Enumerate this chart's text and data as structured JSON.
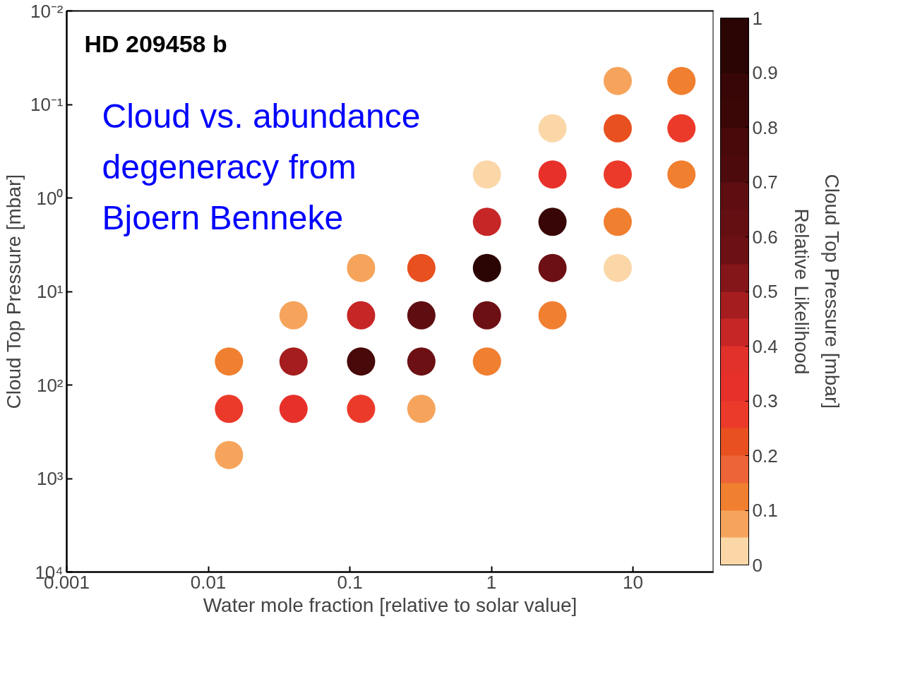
{
  "chart_data": {
    "type": "scatter",
    "xlabel": "Water mole fraction [relative to solar value]",
    "ylabel": "Cloud Top Pressure [mbar]",
    "clabel": "Relative Likelihood\nCloud Top Pressure [mbar]",
    "annotations": [
      "HD 209458 b",
      "Cloud vs. abundance degeneracy from Bjoern Benneke"
    ],
    "log": "xy",
    "marker": "circle",
    "grid": false,
    "xlim": [
      0.001,
      37
    ],
    "ylim": [
      10000,
      0.01
    ],
    "xticks": [
      0.001,
      0.01,
      0.1,
      1,
      10
    ],
    "yticks": [
      {
        "value": 0.01,
        "label": "10⁻²"
      },
      {
        "value": 0.1,
        "label": "10⁻¹"
      },
      {
        "value": 1,
        "label": "10⁰"
      },
      {
        "value": 10,
        "label": "10¹"
      },
      {
        "value": 100,
        "label": "10²"
      },
      {
        "value": 1000,
        "label": "10³"
      },
      {
        "value": 10000,
        "label": "10⁴"
      }
    ],
    "x": [
      0.014,
      0.014,
      0.014,
      0.04,
      0.04,
      0.04,
      0.12,
      0.12,
      0.12,
      0.12,
      0.32,
      0.32,
      0.32,
      0.32,
      0.93,
      0.93,
      0.93,
      0.93,
      0.93,
      2.7,
      2.7,
      2.7,
      2.7,
      2.7,
      7.8,
      7.8,
      7.8,
      7.8,
      7.8,
      22,
      22,
      22
    ],
    "values": [
      180,
      56,
      560,
      56,
      180,
      18,
      56,
      180,
      18,
      5.6,
      18,
      56,
      5.6,
      180,
      5.6,
      18,
      1.8,
      56,
      0.56,
      1.8,
      5.6,
      0.56,
      18,
      0.18,
      0.56,
      0.18,
      1.8,
      0.056,
      5.6,
      0.18,
      0.056,
      0.56
    ],
    "cvalues": [
      0.3,
      0.1,
      0.05,
      0.45,
      0.35,
      0.05,
      0.75,
      0.3,
      0.4,
      0.05,
      0.65,
      0.55,
      0.2,
      0.05,
      0.9,
      0.6,
      0.4,
      0.15,
      0.02,
      0.85,
      0.6,
      0.35,
      0.15,
      0.03,
      0.3,
      0.2,
      0.15,
      0.05,
      0.02,
      0.25,
      0.15,
      0.12
    ],
    "clim": [
      0,
      1
    ],
    "cticks": [
      0,
      0.1,
      0.2,
      0.3,
      0.4,
      0.5,
      0.6,
      0.7,
      0.8,
      0.9,
      1
    ]
  }
}
